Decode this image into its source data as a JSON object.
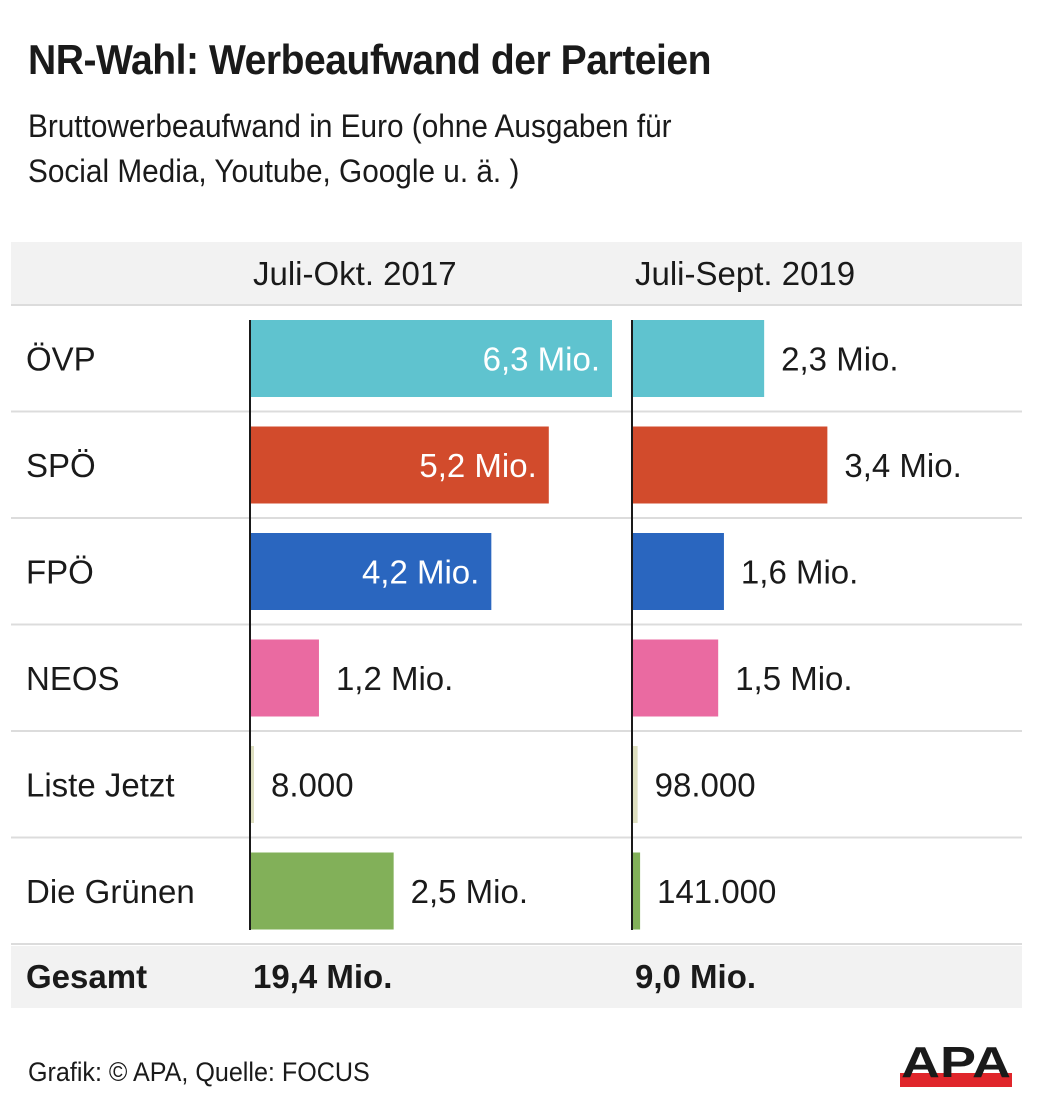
{
  "header": {
    "title": "NR-Wahl: Werbeaufwand der Parteien",
    "subtitle_line1": "Bruttowerbeaufwand in Euro (ohne Ausgaben für",
    "subtitle_line2": "Social Media, Youtube, Google u. ä. )"
  },
  "footer": {
    "credit": "Grafik: © APA, Quelle: FOCUS",
    "logo_text": "APA"
  },
  "chart_data": {
    "type": "bar",
    "orientation": "horizontal",
    "title": "NR-Wahl: Werbeaufwand der Parteien",
    "subtitle": "Bruttowerbeaufwand in Euro (ohne Ausgaben für Social Media, Youtube, Google u. ä. )",
    "unit": "Euro",
    "categories": [
      "ÖVP",
      "SPÖ",
      "FPÖ",
      "NEOS",
      "Liste Jetzt",
      "Die Grünen"
    ],
    "colors": [
      "#5fc3cf",
      "#d24b2c",
      "#2a66bf",
      "#ea6aa1",
      "#dedfc0",
      "#82b059"
    ],
    "series": [
      {
        "name": "Juli-Okt. 2017",
        "values": [
          6300000,
          5200000,
          4200000,
          1200000,
          8000,
          2500000
        ],
        "labels": [
          "6,3 Mio.",
          "5,2 Mio.",
          "4,2 Mio.",
          "1,2 Mio.",
          "8.000",
          "2,5 Mio."
        ],
        "label_inside": [
          true,
          true,
          true,
          false,
          false,
          false
        ],
        "total_label": "19,4 Mio."
      },
      {
        "name": "Juli-Sept. 2019",
        "values": [
          2300000,
          3400000,
          1600000,
          1500000,
          98000,
          141000
        ],
        "labels": [
          "2,3 Mio.",
          "3,4 Mio.",
          "1,6 Mio.",
          "1,5 Mio.",
          "98.000",
          "141.000"
        ],
        "label_inside": [
          false,
          false,
          false,
          false,
          false,
          false
        ],
        "total_label": "9,0 Mio."
      }
    ],
    "total_row_label": "Gesamt",
    "xlim": [
      0,
      6300000
    ],
    "grid": false,
    "legend": "column-headers"
  }
}
